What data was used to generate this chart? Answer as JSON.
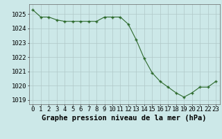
{
  "x": [
    0,
    1,
    2,
    3,
    4,
    5,
    6,
    7,
    8,
    9,
    10,
    11,
    12,
    13,
    14,
    15,
    16,
    17,
    18,
    19,
    20,
    21,
    22,
    23
  ],
  "y": [
    1025.3,
    1024.8,
    1024.8,
    1024.6,
    1024.5,
    1024.5,
    1024.5,
    1024.5,
    1024.5,
    1024.8,
    1024.8,
    1024.8,
    1024.3,
    1023.2,
    1021.9,
    1020.9,
    1020.3,
    1019.9,
    1019.5,
    1019.2,
    1019.5,
    1019.9,
    1019.9,
    1020.3
  ],
  "line_color": "#2d6a2d",
  "marker_color": "#2d6a2d",
  "bg_color": "#cce8e8",
  "grid_color": "#b0c8c8",
  "title": "Graphe pression niveau de la mer (hPa)",
  "ylim": [
    1018.7,
    1025.7
  ],
  "yticks": [
    1019,
    1020,
    1021,
    1022,
    1023,
    1024,
    1025
  ],
  "xticks": [
    0,
    1,
    2,
    3,
    4,
    5,
    6,
    7,
    8,
    9,
    10,
    11,
    12,
    13,
    14,
    15,
    16,
    17,
    18,
    19,
    20,
    21,
    22,
    23
  ],
  "xlabel_color": "#000000",
  "title_fontsize": 7.5,
  "tick_fontsize": 6.5
}
